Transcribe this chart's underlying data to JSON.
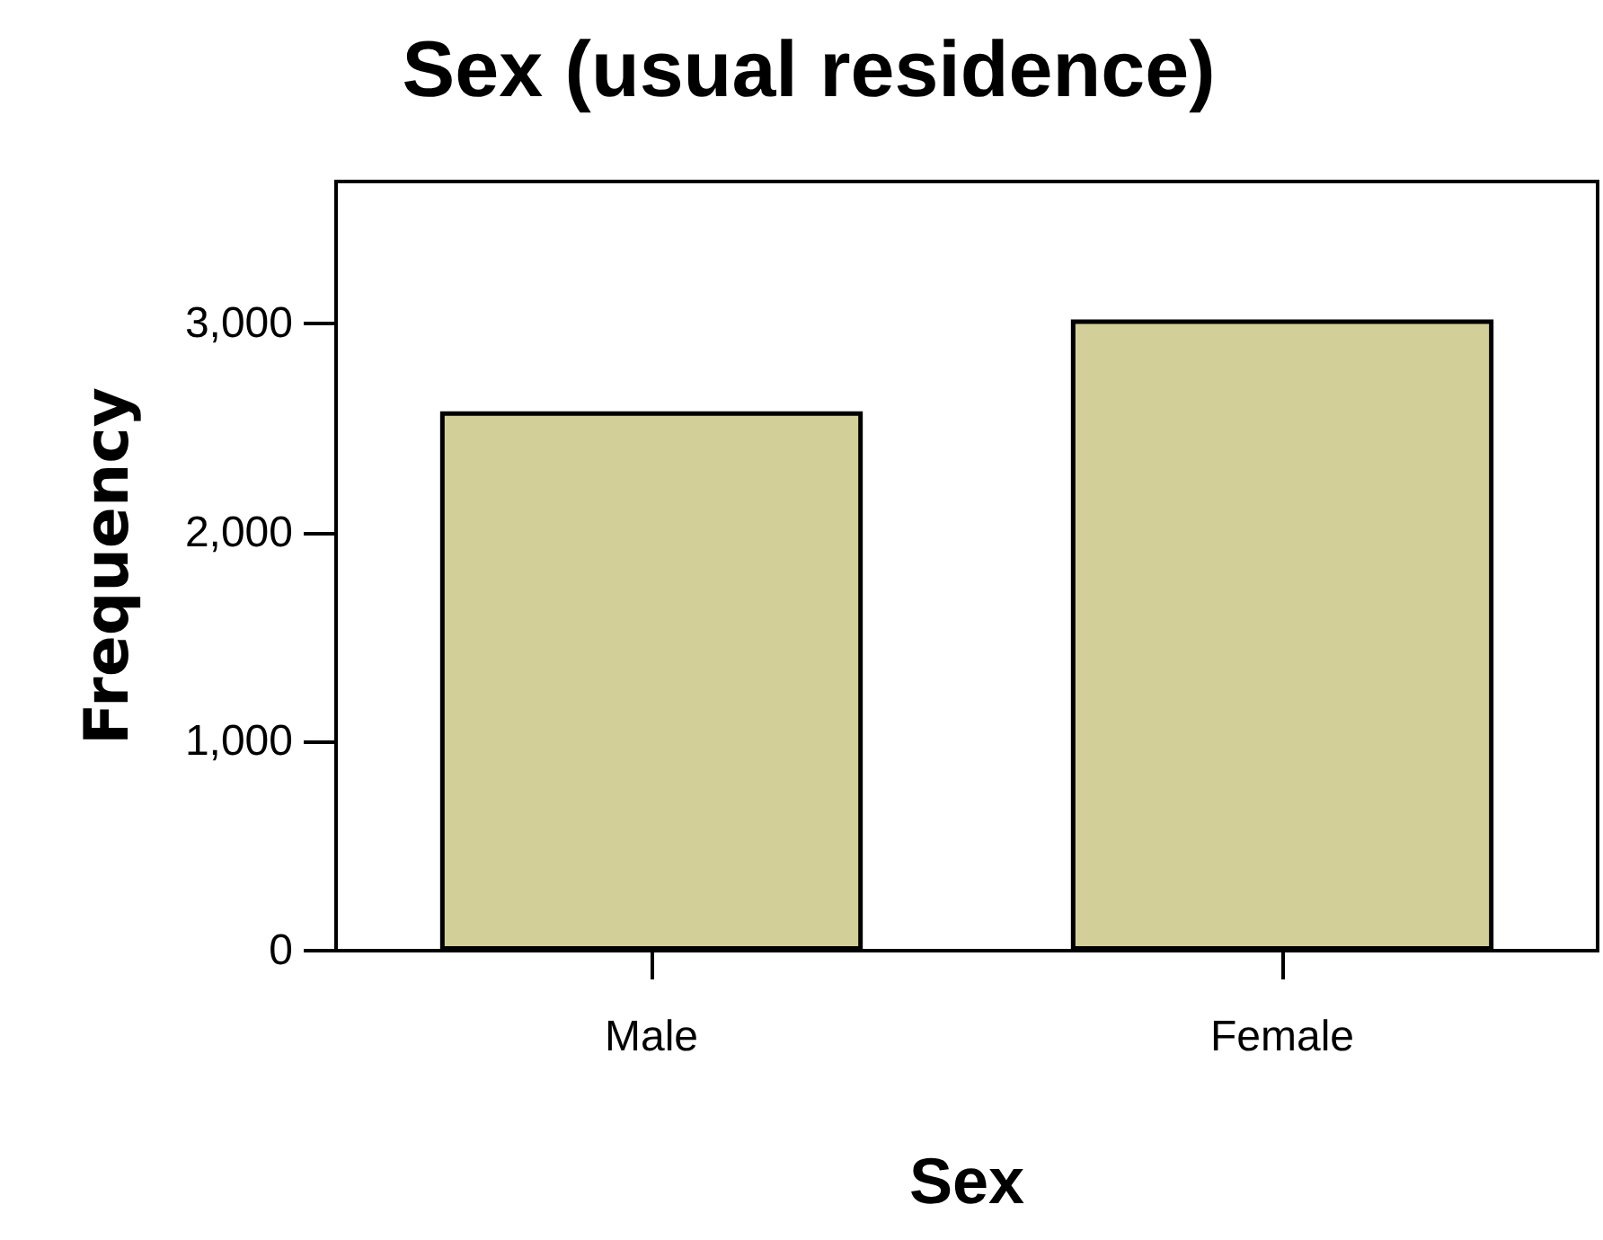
{
  "chart_data": {
    "type": "bar",
    "title": "Sex (usual residence)",
    "xlabel": "Sex",
    "ylabel": "Frequency",
    "categories": [
      "Male",
      "Female"
    ],
    "values": [
      2580,
      3020
    ],
    "color": "#d3cf98",
    "ylim": [
      0,
      3680
    ],
    "yticks": [
      0,
      {
        "value": 1000,
        "label": "1,000"
      },
      {
        "value": 2000,
        "label": "2,000"
      },
      {
        "value": 3000,
        "label": "3,000"
      }
    ],
    "grid": false
  }
}
